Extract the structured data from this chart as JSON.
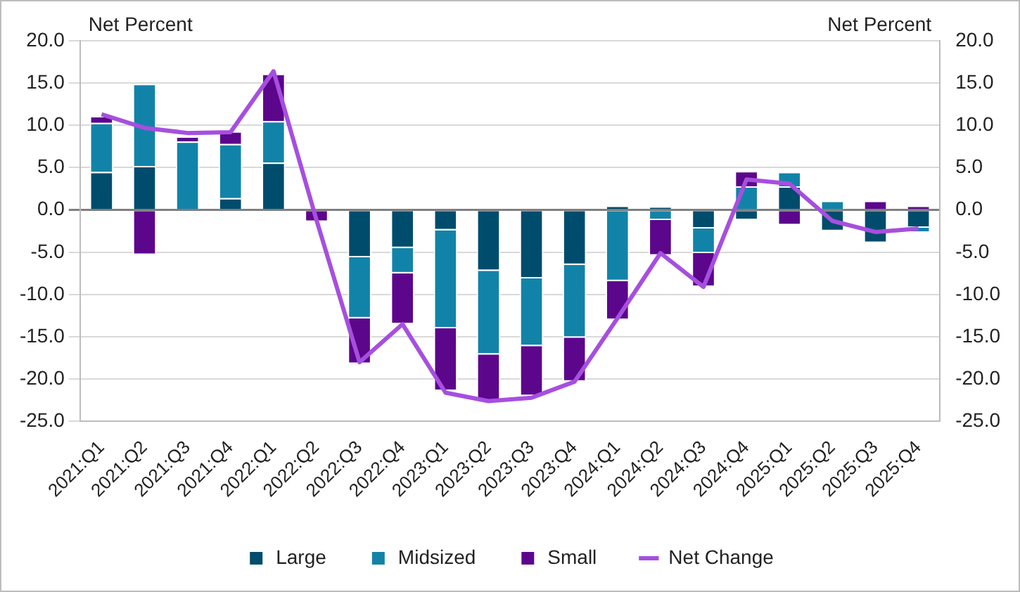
{
  "chart_data": {
    "type": "bar",
    "stacked": true,
    "annotations": [
      "Net Percent",
      "Net Percent"
    ],
    "categories": [
      "2021:Q1",
      "2021:Q2",
      "2021:Q3",
      "2021:Q4",
      "2022:Q1",
      "2022:Q2",
      "2022:Q3",
      "2022:Q4",
      "2023:Q1",
      "2023:Q2",
      "2023:Q3",
      "2023:Q4",
      "2024:Q1",
      "2024:Q2",
      "2024:Q3",
      "2024:Q4",
      "2025:Q1",
      "2025:Q2",
      "2025:Q3",
      "2025:Q4"
    ],
    "series": [
      {
        "name": "Large",
        "color": "#004c6d",
        "values": [
          4.5,
          5.2,
          0,
          1.4,
          5.6,
          0,
          -5.6,
          -4.5,
          -2.4,
          -7.2,
          -8.1,
          -6.5,
          0.5,
          0.4,
          -2.2,
          -1.2,
          2.8,
          -2.5,
          -3.9,
          -2.1
        ]
      },
      {
        "name": "Midsized",
        "color": "#1283a8",
        "values": [
          5.8,
          9.7,
          8.1,
          6.4,
          4.9,
          0,
          -7.2,
          -3.0,
          -11.6,
          -9.9,
          -8.0,
          -8.6,
          -8.4,
          -1.2,
          -2.9,
          2.8,
          1.7,
          1.1,
          0,
          -0.6
        ]
      },
      {
        "name": "Small",
        "color": "#5c068c",
        "values": [
          0.8,
          -5.3,
          0.6,
          1.5,
          5.6,
          -1.4,
          -5.4,
          -6.0,
          -7.4,
          -5.6,
          -5.9,
          -5.2,
          -4.6,
          -4.2,
          -4.0,
          1.8,
          -1.8,
          0,
          1.1,
          0.5
        ]
      },
      {
        "name": "Net Change",
        "type": "line",
        "color": "#a64fdf",
        "values": [
          11.3,
          9.7,
          9.1,
          9.2,
          16.4,
          -1.2,
          -18.0,
          -13.5,
          -21.6,
          -22.6,
          -22.2,
          -20.3,
          -12.8,
          -5.1,
          -9.1,
          3.6,
          3.1,
          -1.3,
          -2.6,
          -2.2
        ]
      }
    ],
    "ylim": [
      -25,
      20
    ],
    "yticks": [
      {
        "value": -25,
        "label": "-25.0"
      },
      {
        "value": -20,
        "label": "-20.0"
      },
      {
        "value": -15,
        "label": "-15.0"
      },
      {
        "value": -10,
        "label": "-10.0"
      },
      {
        "value": -5,
        "label": "-5.0"
      },
      {
        "value": 0,
        "label": "0.0"
      },
      {
        "value": 5,
        "label": "5.0"
      },
      {
        "value": 10,
        "label": "10.0"
      },
      {
        "value": 15,
        "label": "15.0"
      },
      {
        "value": 20,
        "label": "20.0"
      }
    ],
    "y2lim": [
      -25,
      20
    ],
    "y2ticks": [
      {
        "value": -25,
        "label": "-25.0"
      },
      {
        "value": -20,
        "label": "-20.0"
      },
      {
        "value": -15,
        "label": "-15.0"
      },
      {
        "value": -10,
        "label": "-10.0"
      },
      {
        "value": -5,
        "label": "-5.0"
      },
      {
        "value": 0,
        "label": "0.0"
      },
      {
        "value": 5,
        "label": "5.0"
      },
      {
        "value": 10,
        "label": "10.0"
      },
      {
        "value": 15,
        "label": "15.0"
      },
      {
        "value": 20,
        "label": "20.0"
      }
    ],
    "grid": "y",
    "legend": "bottom",
    "marker": "none"
  }
}
